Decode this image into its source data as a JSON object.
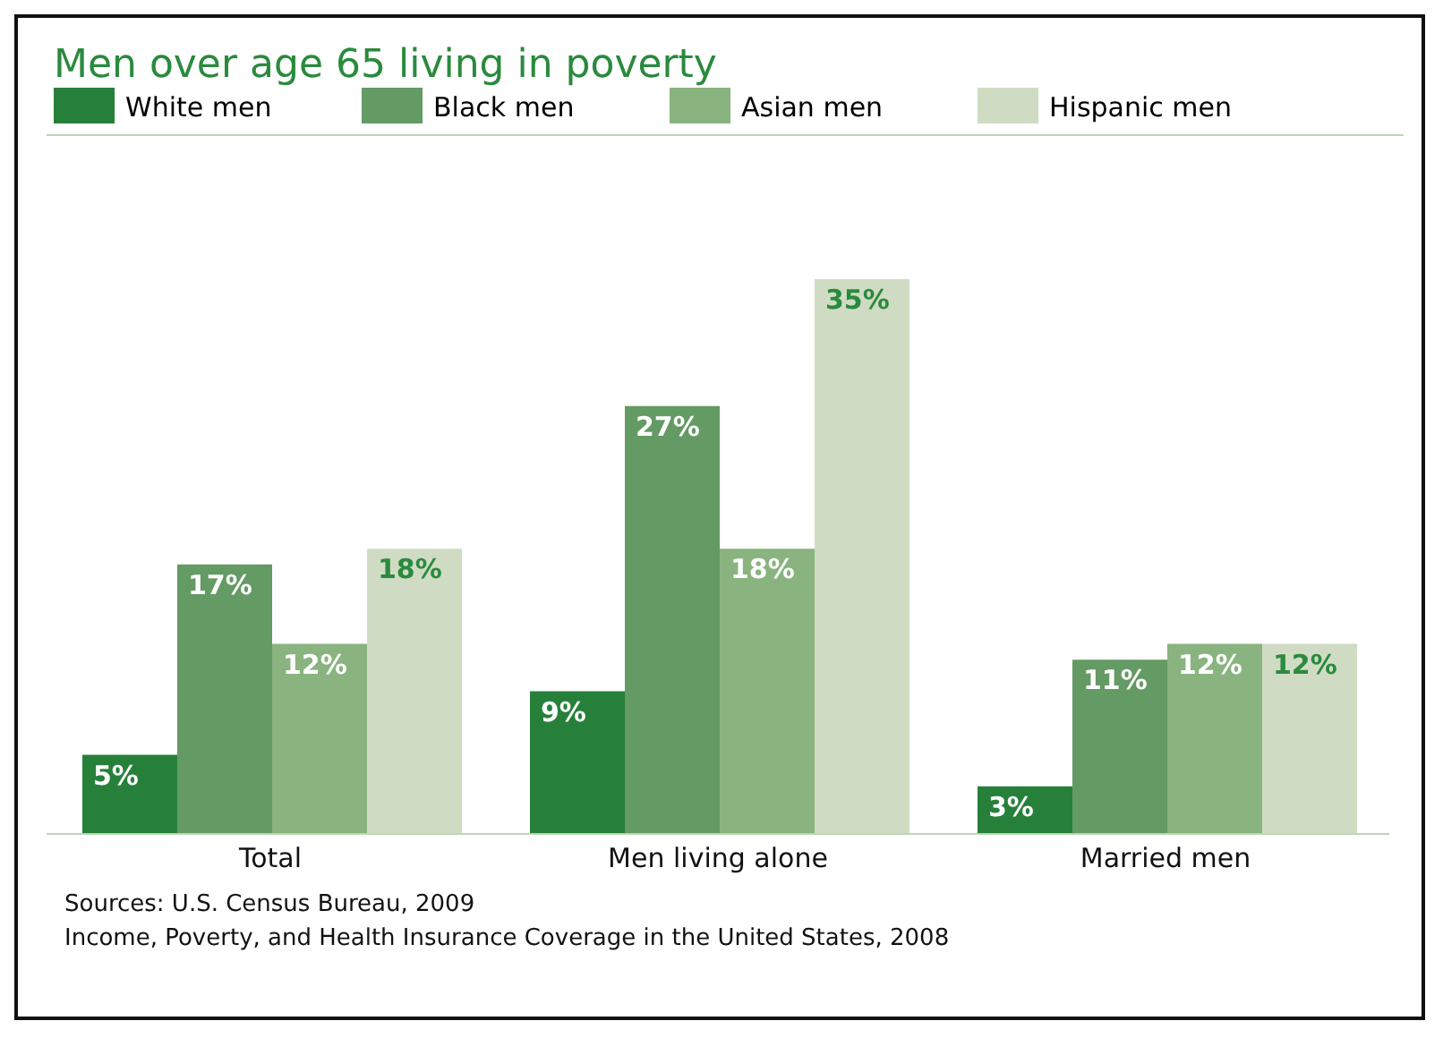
{
  "chart_data": {
    "type": "bar",
    "title": "Men over age 65 living in poverty",
    "categories": [
      "Total",
      "Men living alone",
      "Married men"
    ],
    "series": [
      {
        "name": "White men",
        "color": "#27803a",
        "values": [
          5,
          9,
          3
        ],
        "value_labels": [
          "5%",
          "9%",
          "3%"
        ]
      },
      {
        "name": "Black men",
        "color": "#649a63",
        "values": [
          17,
          27,
          11
        ],
        "value_labels": [
          "17%",
          "27%",
          "11%"
        ]
      },
      {
        "name": "Asian men",
        "color": "#89b37f",
        "values": [
          12,
          18,
          12
        ],
        "value_labels": [
          "12%",
          "18%",
          "12%"
        ]
      },
      {
        "name": "Hispanic men",
        "color": "#cfdcc3",
        "values": [
          18,
          35,
          12
        ],
        "value_labels": [
          "18%",
          "35%",
          "12%"
        ]
      }
    ],
    "legend": "top left",
    "annotations": [
      "Sources: U.S. Census Bureau, 2009",
      "Income, Poverty, and Health Insurance Coverage in the United States, 2008"
    ]
  }
}
